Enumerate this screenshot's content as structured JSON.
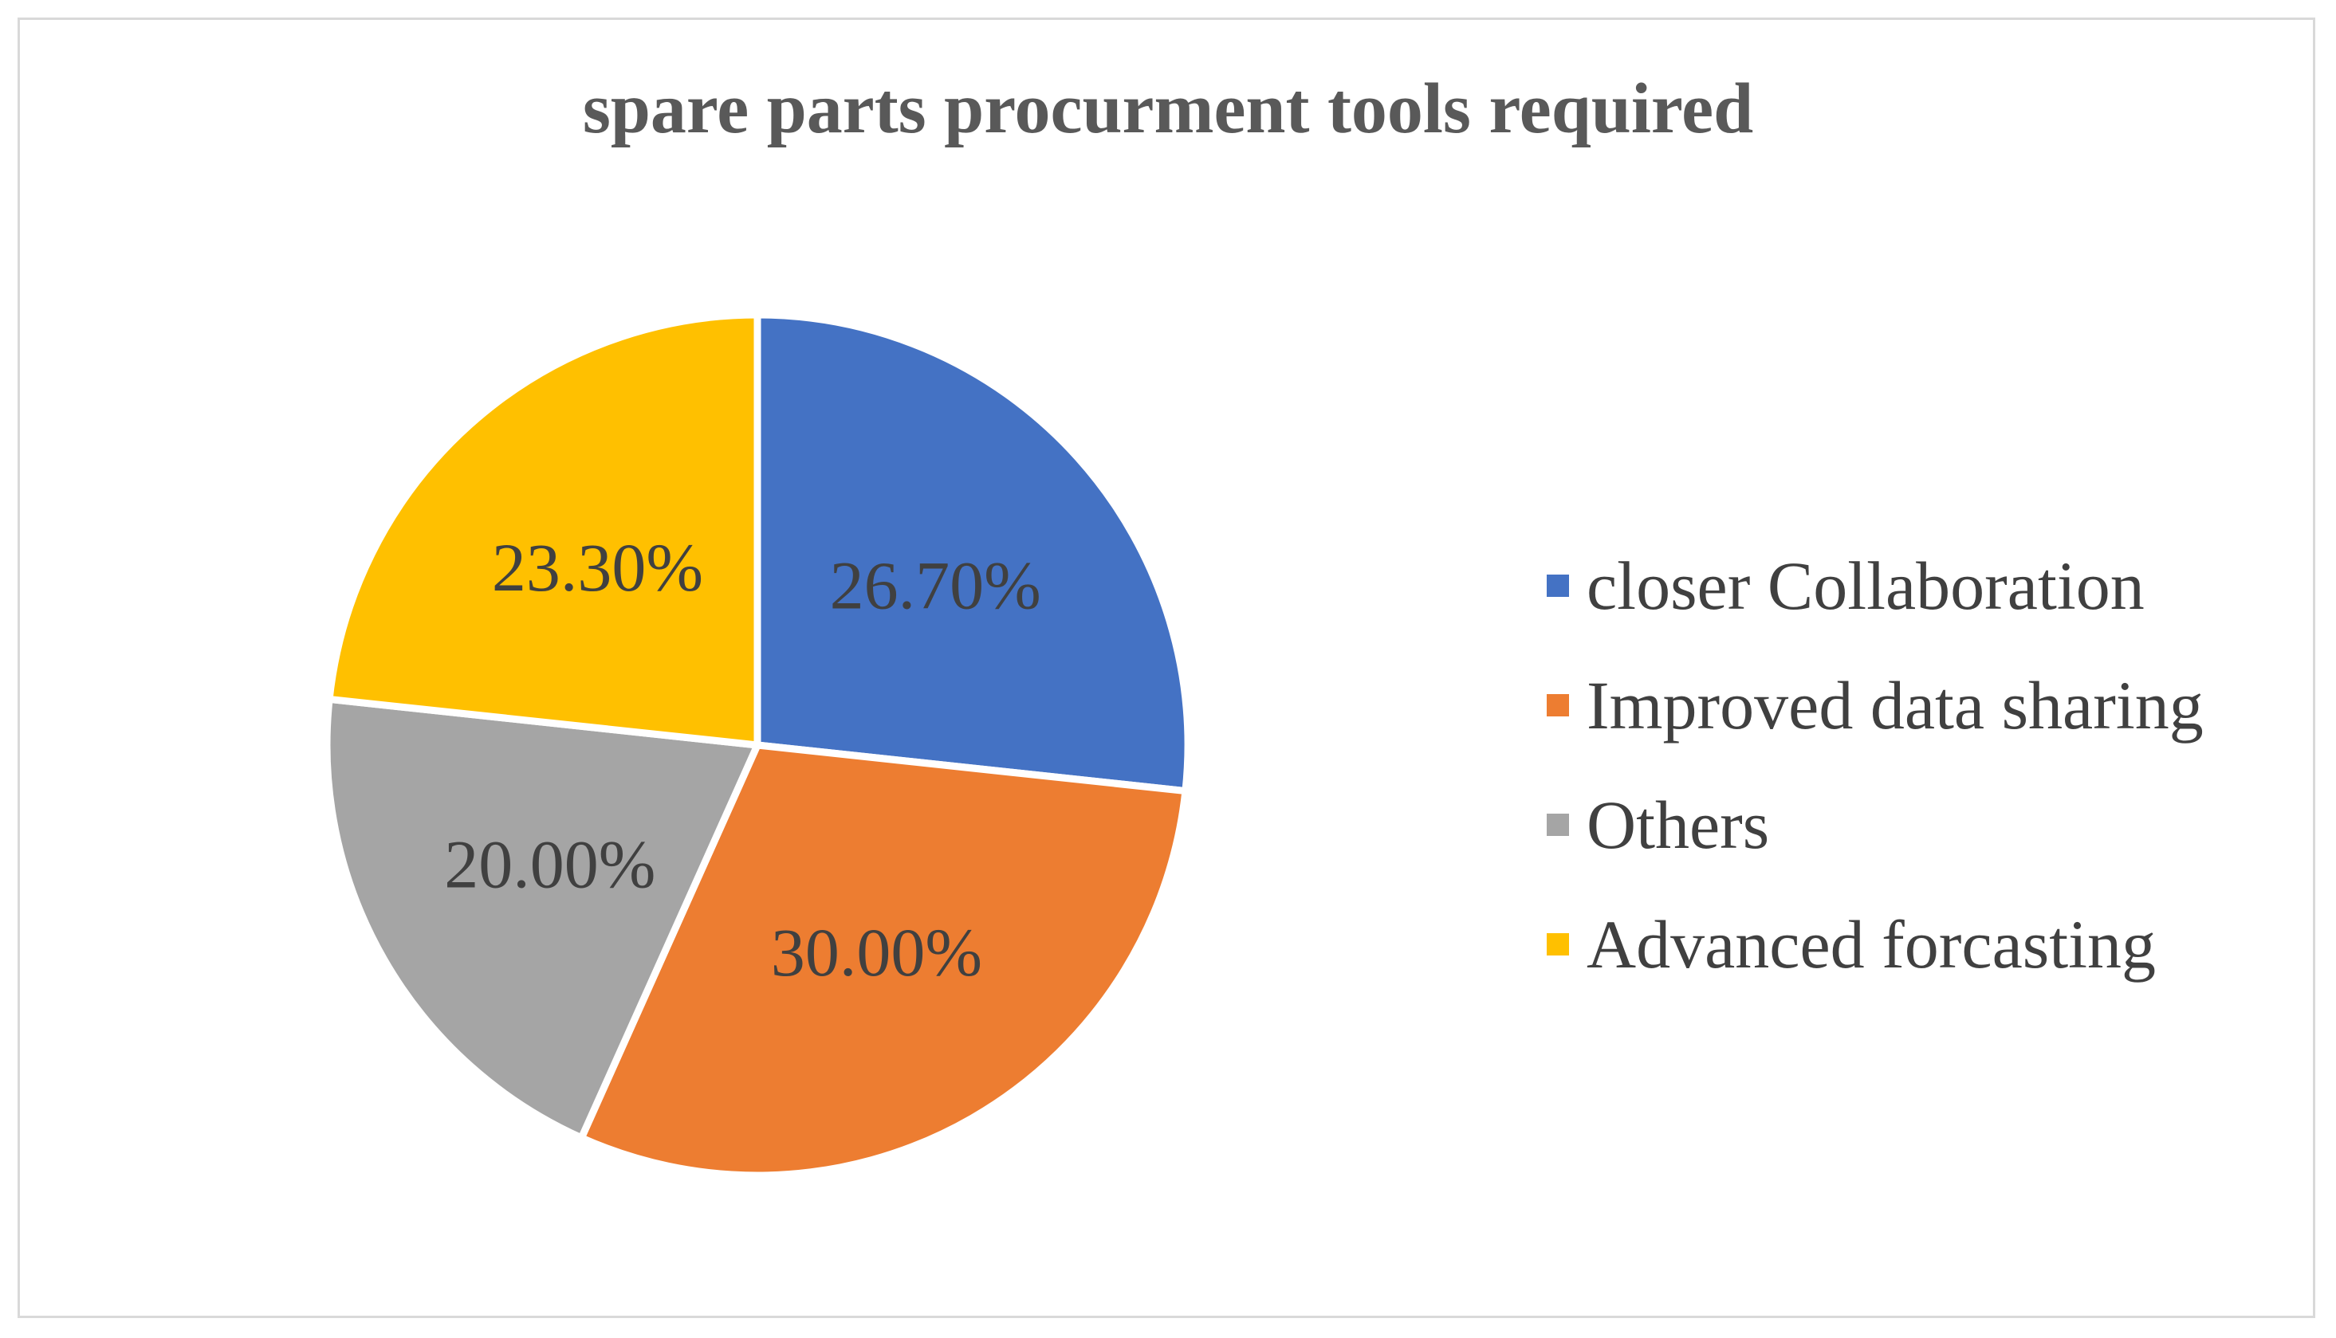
{
  "chart_data": {
    "type": "pie",
    "title": "spare parts procurment tools required",
    "categories": [
      "closer Collaboration",
      "Improved data sharing",
      "Others",
      "Advanced forcasting"
    ],
    "values": [
      26.7,
      30.0,
      20.0,
      23.3
    ],
    "data_labels": [
      "26.70%",
      "30.00%",
      "20.00%",
      "23.30%"
    ],
    "colors": [
      "#4472C4",
      "#ED7D31",
      "#A5A5A5",
      "#FFC000"
    ],
    "start_angle": "12 o'clock",
    "direction": "clockwise",
    "legend_position": "right"
  }
}
